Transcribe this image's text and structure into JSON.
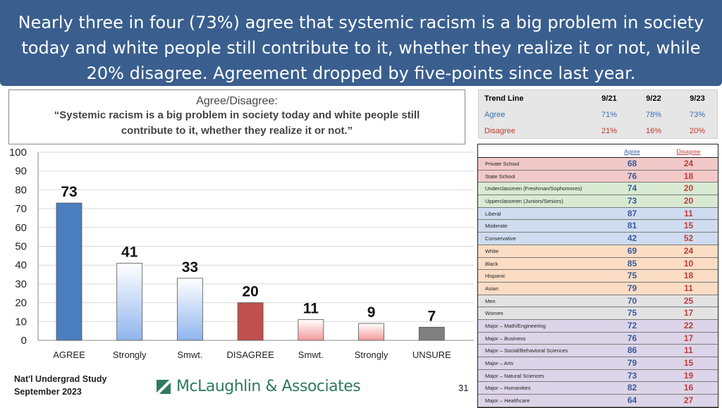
{
  "header": {
    "line1": "Nearly three in four (73%) agree that systemic racism is a big problem in society",
    "line2": "today and white people still contribute to it, whether they realize it or not, while",
    "line3": "20% disagree. Agreement dropped by five-points since last year."
  },
  "question": {
    "title": "Agree/Disagree:",
    "line1": "“Systemic racism is a big problem in society today and white people still",
    "line2": "contribute to it, whether they realize it or not.”"
  },
  "trend": {
    "header": [
      "Trend Line",
      "9/21",
      "9/22",
      "9/23"
    ],
    "rows": [
      {
        "label": "Agree",
        "values": [
          "71%",
          "78%",
          "73%"
        ]
      },
      {
        "label": "Disagree",
        "values": [
          "21%",
          "16%",
          "20%"
        ]
      }
    ],
    "agree_color": "#3a6fb0",
    "disagree_color": "#c0392b"
  },
  "chart_data": {
    "type": "bar",
    "categories": [
      "AGREE",
      "Strongly",
      "Smwt.",
      "DISAGREE",
      "Smwt.",
      "Strongly",
      "UNSURE"
    ],
    "values": [
      73,
      41,
      33,
      20,
      11,
      9,
      7
    ],
    "colors": [
      "#4a7ebf",
      "#a9c6f2",
      "#a9c6f2",
      "#c0504d",
      "#f4b4b4",
      "#f4b4b4",
      "#7f7f7f"
    ],
    "ylim": [
      0,
      100
    ],
    "yticks": [
      0,
      10,
      20,
      30,
      40,
      50,
      60,
      70,
      80,
      90,
      100
    ],
    "grid": true
  },
  "demo_table": {
    "headers": {
      "agree": "Agree",
      "disagree": "Disagree"
    },
    "rows": [
      {
        "label": "Private School",
        "agree": "68",
        "disagree": "24",
        "bg": "#f2c9c9"
      },
      {
        "label": "State School",
        "agree": "76",
        "disagree": "18",
        "bg": "#f2c9c9"
      },
      {
        "label": "Underclassmen (Freshman/Sophomores)",
        "agree": "74",
        "disagree": "20",
        "bg": "#d8ead2"
      },
      {
        "label": "Upperclassmen (Juniors/Seniors)",
        "agree": "73",
        "disagree": "20",
        "bg": "#d8ead2"
      },
      {
        "label": "Liberal",
        "agree": "87",
        "disagree": "11",
        "bg": "#cfdcef"
      },
      {
        "label": "Moderate",
        "agree": "81",
        "disagree": "15",
        "bg": "#cfdcef"
      },
      {
        "label": "Conservative",
        "agree": "42",
        "disagree": "52",
        "bg": "#cfdcef"
      },
      {
        "label": "White",
        "agree": "69",
        "disagree": "24",
        "bg": "#fbdcc4"
      },
      {
        "label": "Black",
        "agree": "85",
        "disagree": "10",
        "bg": "#fbdcc4"
      },
      {
        "label": "Hispanic",
        "agree": "75",
        "disagree": "18",
        "bg": "#fbdcc4"
      },
      {
        "label": "Asian",
        "agree": "79",
        "disagree": "11",
        "bg": "#fbdcc4"
      },
      {
        "label": "Men",
        "agree": "70",
        "disagree": "25",
        "bg": "#e2e2e2"
      },
      {
        "label": "Women",
        "agree": "75",
        "disagree": "17",
        "bg": "#e2e2e2"
      },
      {
        "label": "Major – Math/Engineering",
        "agree": "72",
        "disagree": "22",
        "bg": "#dcd4e8"
      },
      {
        "label": "Major – Business",
        "agree": "76",
        "disagree": "17",
        "bg": "#dcd4e8"
      },
      {
        "label": "Major – Social/Behavioral Sciences",
        "agree": "86",
        "disagree": "11",
        "bg": "#dcd4e8"
      },
      {
        "label": "Major – Arts",
        "agree": "79",
        "disagree": "15",
        "bg": "#dcd4e8"
      },
      {
        "label": "Major – Natural Sciences",
        "agree": "73",
        "disagree": "19",
        "bg": "#dcd4e8"
      },
      {
        "label": "Major – Humanities",
        "agree": "82",
        "disagree": "16",
        "bg": "#dcd4e8"
      },
      {
        "label": "Major – Healthcare",
        "agree": "64",
        "disagree": "27",
        "bg": "#dcd4e8"
      }
    ]
  },
  "footer": {
    "study_line1": "Nat'l Undergrad Study",
    "study_line2": "September 2023",
    "logo_text": "McLaughlin & Associates",
    "logo_icon": "mclaughlin-logo-mark",
    "page_number": "31"
  }
}
